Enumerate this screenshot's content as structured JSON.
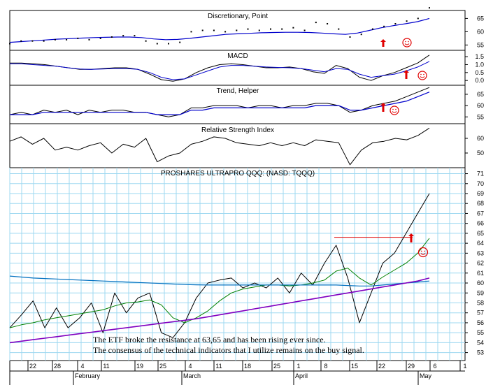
{
  "x_axis": {
    "day_labels": [
      "22",
      "28",
      "4",
      "11",
      "19",
      "25",
      "4",
      "11",
      "18",
      "25",
      "1",
      "8",
      "15",
      "22",
      "29",
      "6",
      "1"
    ],
    "month_labels": [
      "February",
      "March",
      "April",
      "May"
    ]
  },
  "chart_data": [
    {
      "type": "line",
      "title": "Discretionary, Point",
      "y_ticks": [
        55,
        60,
        65
      ],
      "ylim": [
        53,
        68
      ],
      "series": [
        {
          "values": [
            56,
            56.3,
            56.6,
            56.9,
            57.2,
            57.4,
            57.6,
            57.8,
            57.9,
            58,
            58,
            57.8,
            57.3,
            57,
            57.1,
            57.5,
            58,
            58.5,
            59,
            59.2,
            59.4,
            59.6,
            59.7,
            59.8,
            59.8,
            59.7,
            59.5,
            59.2,
            59,
            59.5,
            60.5,
            61.5,
            62.3,
            63,
            63.8,
            65
          ]
        },
        {
          "values": [
            55.5,
            56.5,
            56.5,
            56.5,
            57,
            57,
            57.5,
            57,
            57.5,
            58,
            58.5,
            58.5,
            56.5,
            55.5,
            55.5,
            56,
            60,
            60.5,
            60.5,
            60,
            60.5,
            61,
            60.5,
            61,
            61,
            61.5,
            60.5,
            63.5,
            63,
            61,
            58,
            59,
            61,
            62,
            63,
            64,
            65,
            69
          ]
        }
      ],
      "annotations": {
        "arrows": 1,
        "smileys": 1
      }
    },
    {
      "type": "line",
      "title": "MACD",
      "y_ticks": [
        0.0,
        0.5,
        1.0,
        1.5
      ],
      "ylim": [
        -0.3,
        1.9
      ],
      "series": [
        {
          "values": [
            1.1,
            1.1,
            1.05,
            1.0,
            0.9,
            0.8,
            0.7,
            0.7,
            0.75,
            0.8,
            0.8,
            0.7,
            0.4,
            0.05,
            -0.05,
            0.1,
            0.5,
            0.8,
            1.0,
            1.05,
            1.0,
            0.9,
            0.8,
            0.8,
            0.85,
            0.75,
            0.55,
            0.45,
            0.95,
            0.75,
            0.2,
            0.0,
            0.3,
            0.5,
            0.8,
            1.1,
            1.6
          ]
        },
        {
          "values": [
            1.05,
            1.05,
            1.0,
            0.95,
            0.9,
            0.8,
            0.72,
            0.7,
            0.72,
            0.75,
            0.75,
            0.7,
            0.5,
            0.2,
            0.05,
            0.1,
            0.35,
            0.6,
            0.85,
            0.95,
            0.95,
            0.9,
            0.85,
            0.82,
            0.8,
            0.75,
            0.65,
            0.55,
            0.75,
            0.7,
            0.4,
            0.2,
            0.3,
            0.4,
            0.6,
            0.85,
            1.2
          ]
        }
      ],
      "annotations": {
        "arrows": 1,
        "smileys": 1
      }
    },
    {
      "type": "line",
      "title": "Trend, Helper",
      "y_ticks": [
        55,
        60,
        65
      ],
      "ylim": [
        52,
        69
      ],
      "series": [
        {
          "values": [
            56,
            57,
            56,
            58,
            57,
            58,
            56,
            58,
            57,
            58,
            58,
            57,
            57,
            56,
            55,
            56,
            59,
            59,
            60,
            60,
            60,
            59,
            60,
            60,
            59,
            60,
            60,
            61,
            61,
            60,
            57,
            58,
            60,
            61,
            62,
            64,
            66,
            68
          ]
        },
        {
          "values": [
            56,
            56,
            56,
            57,
            57,
            57,
            57,
            57,
            57,
            57,
            57,
            57,
            57,
            56,
            56,
            56,
            58,
            58,
            59,
            59,
            59,
            59,
            59,
            59,
            59,
            59,
            59,
            60,
            60,
            60,
            58,
            58,
            59,
            60,
            61,
            62,
            64,
            66
          ]
        }
      ],
      "annotations": {
        "arrows": 1,
        "smileys": 1
      }
    },
    {
      "type": "line",
      "title": "Relative Strength Index",
      "y_ticks": [
        50,
        60
      ],
      "ylim": [
        40,
        70
      ],
      "series": [
        {
          "values": [
            58,
            61,
            56,
            60,
            52,
            54,
            52,
            55,
            57,
            50,
            56,
            54,
            60,
            44,
            48,
            50,
            56,
            58,
            61,
            60,
            57,
            56,
            55,
            57,
            55,
            57,
            55,
            59,
            58,
            57,
            42,
            52,
            57,
            58,
            60,
            59,
            62,
            67
          ]
        }
      ]
    },
    {
      "type": "line",
      "title": "PROSHARES ULTRAPRO QQQ: (NASD: TQQQ)",
      "y_ticks": [
        53,
        54,
        55,
        56,
        57,
        58,
        59,
        60,
        61,
        62,
        63,
        64,
        65,
        66,
        67,
        68,
        69,
        70,
        71
      ],
      "ylim": [
        52.2,
        71.6
      ],
      "series": [
        {
          "values": [
            55.5,
            56.8,
            58.2,
            55.5,
            57.5,
            55.5,
            56.5,
            58,
            55,
            59,
            57,
            58.5,
            59,
            55,
            54.5,
            56,
            58.5,
            60,
            60.3,
            60.5,
            59.5,
            60,
            59.5,
            60.5,
            59,
            61,
            59.8,
            62,
            63.8,
            60.5,
            56,
            59,
            62,
            63,
            65,
            67,
            69
          ]
        },
        {
          "values": [
            55.5,
            55.8,
            56,
            56.3,
            56.5,
            56.7,
            56.9,
            57.1,
            57.3,
            57.7,
            58,
            58.1,
            58.3,
            57.8,
            56.5,
            56,
            56.5,
            57.2,
            58.2,
            59,
            59.4,
            59.6,
            59.8,
            59.8,
            59.7,
            59.8,
            60,
            60.3,
            61.2,
            61.5,
            60.5,
            59.8,
            60.6,
            61.3,
            62,
            63,
            64.5
          ]
        },
        {
          "values": [
            60.7,
            60.6,
            60.5,
            60.45,
            60.4,
            60.35,
            60.3,
            60.25,
            60.2,
            60.15,
            60.1,
            60.05,
            60,
            59.95,
            59.9,
            59.85,
            59.82,
            59.8,
            59.8,
            59.8,
            59.8,
            59.8,
            59.8,
            59.8,
            59.8,
            59.8,
            59.8,
            59.8,
            59.8,
            59.75,
            59.7,
            59.7,
            59.8,
            59.9,
            60,
            60.1,
            60.2
          ]
        },
        {
          "values": [
            54,
            54.15,
            54.3,
            54.45,
            54.6,
            54.75,
            54.9,
            55.05,
            55.2,
            55.35,
            55.5,
            55.65,
            55.8,
            55.95,
            56.1,
            56.25,
            56.4,
            56.6,
            56.8,
            57,
            57.2,
            57.4,
            57.6,
            57.8,
            58,
            58.2,
            58.4,
            58.6,
            58.8,
            59,
            59.2,
            59.4,
            59.6,
            59.8,
            60,
            60.2,
            60.5
          ]
        }
      ],
      "annotations": {
        "arrows": 1,
        "smileys": 1
      },
      "resistance_level": 63.65,
      "notes": [
        "The ETF broke the resistance at 63,65 and has been rising ever since.",
        "The consensus of the technical indicators that I utilize remains on the buy signal."
      ]
    }
  ]
}
